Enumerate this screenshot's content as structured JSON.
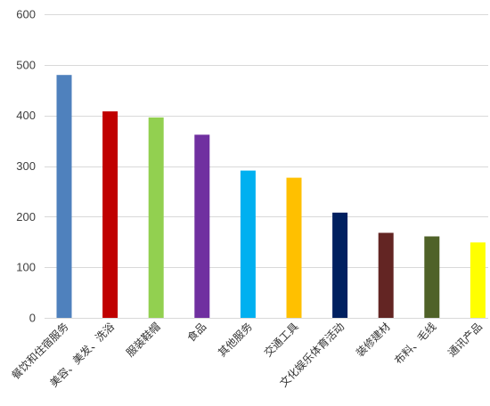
{
  "chart_data": {
    "type": "bar",
    "title": "",
    "xlabel": "",
    "ylabel": "",
    "ylim": [
      0,
      600
    ],
    "yticks": [
      0,
      100,
      200,
      300,
      400,
      500,
      600
    ],
    "grid": true,
    "legend": "none",
    "categories": [
      "餐饮和住宿服务",
      "美容、美发、洗浴",
      "服装鞋帽",
      "食品",
      "其他服务",
      "交通工具",
      "文化娱乐体育活动",
      "装修建材",
      "布料、毛线",
      "通讯产品"
    ],
    "values": [
      480,
      408,
      396,
      362,
      291,
      277,
      208,
      168,
      161,
      149
    ],
    "colors": [
      "#4f81bd",
      "#c00000",
      "#92d050",
      "#7030a0",
      "#00b0f0",
      "#ffc000",
      "#002060",
      "#632523",
      "#4f6228",
      "#ffff00"
    ]
  }
}
